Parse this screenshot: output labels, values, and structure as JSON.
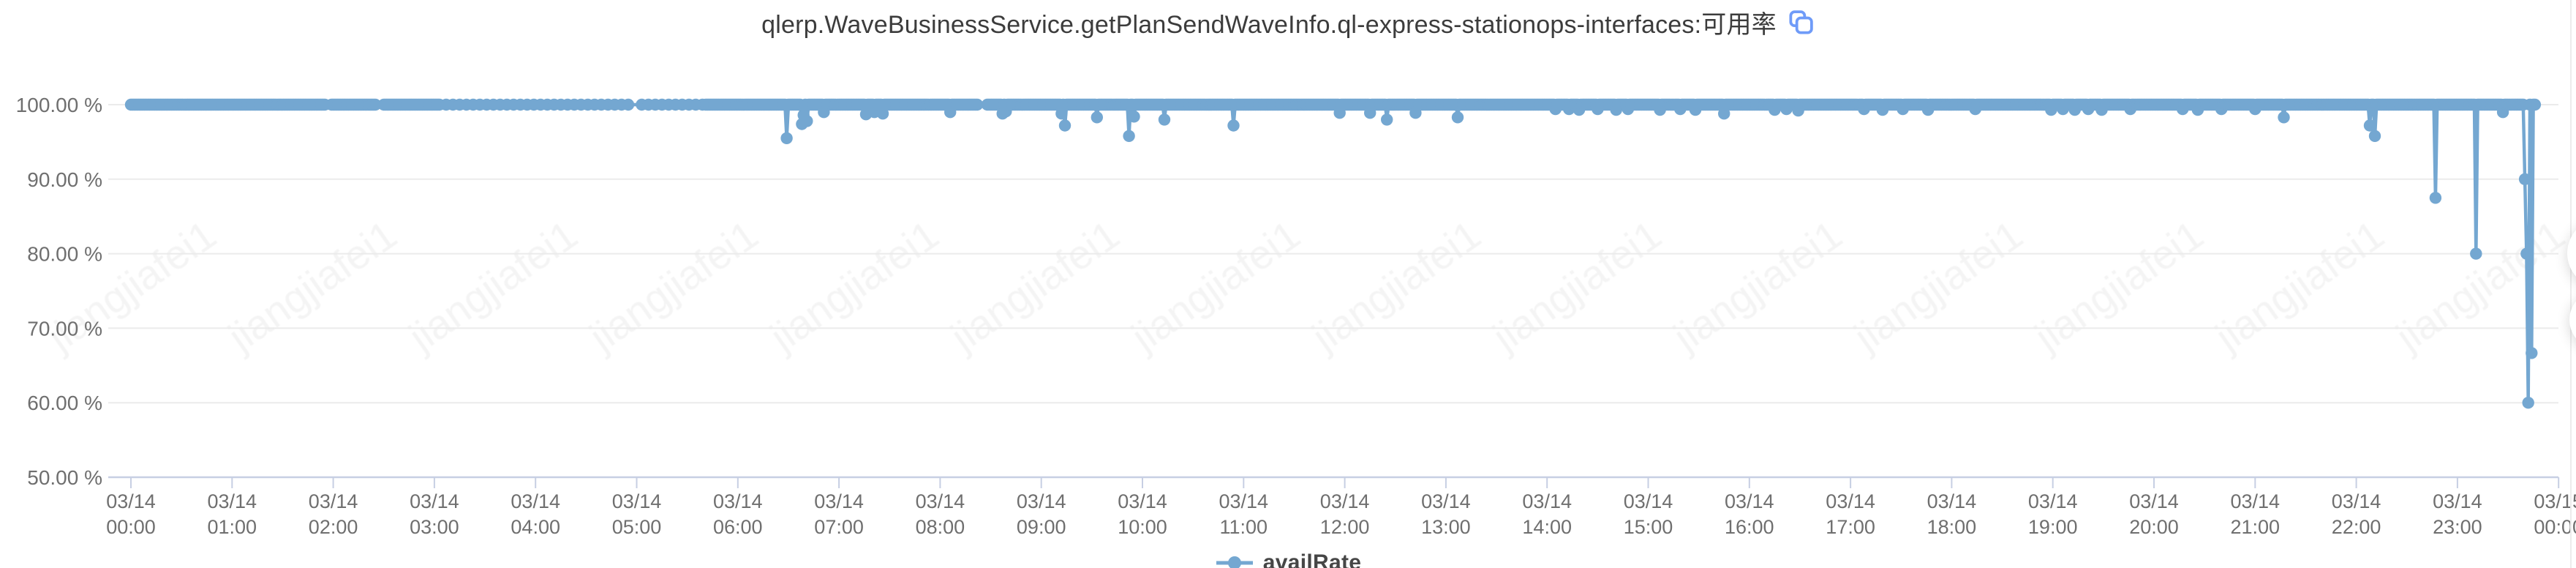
{
  "title": {
    "text": "qlerp.WaveBusinessService.getPlanSendWaveInfo.ql-express-stationops-interfaces:可用率"
  },
  "watermark": {
    "text": "jiangjiafei1"
  },
  "legend": {
    "items": [
      {
        "label": "availRate",
        "color": "#74a7d1"
      }
    ]
  },
  "colors": {
    "series": "#74a7d1",
    "grid_line": "#ebebeb",
    "axis_line": "#c7cfe3",
    "tick_label": "#6f6f6f",
    "title_text": "#3c3c3c",
    "copy_icon": "#6f9bf8",
    "legend_text": "#464646"
  },
  "chart_data": {
    "type": "line",
    "series_name": "availRate",
    "unit": "%",
    "ylim": [
      50,
      100
    ],
    "grid": true,
    "legend_position": "bottom-center",
    "y_tick_labels": [
      "100.00 %",
      "90.00 %",
      "80.00 %",
      "70.00 %",
      "60.00 %",
      "50.00 %"
    ],
    "x_tick_labels": [
      {
        "date": "03/14",
        "time": "00:00"
      },
      {
        "date": "03/14",
        "time": "01:00"
      },
      {
        "date": "03/14",
        "time": "02:00"
      },
      {
        "date": "03/14",
        "time": "03:00"
      },
      {
        "date": "03/14",
        "time": "04:00"
      },
      {
        "date": "03/14",
        "time": "05:00"
      },
      {
        "date": "03/14",
        "time": "06:00"
      },
      {
        "date": "03/14",
        "time": "07:00"
      },
      {
        "date": "03/14",
        "time": "08:00"
      },
      {
        "date": "03/14",
        "time": "09:00"
      },
      {
        "date": "03/14",
        "time": "10:00"
      },
      {
        "date": "03/14",
        "time": "11:00"
      },
      {
        "date": "03/14",
        "time": "12:00"
      },
      {
        "date": "03/14",
        "time": "13:00"
      },
      {
        "date": "03/14",
        "time": "14:00"
      },
      {
        "date": "03/14",
        "time": "15:00"
      },
      {
        "date": "03/14",
        "time": "16:00"
      },
      {
        "date": "03/14",
        "time": "17:00"
      },
      {
        "date": "03/14",
        "time": "18:00"
      },
      {
        "date": "03/14",
        "time": "19:00"
      },
      {
        "date": "03/14",
        "time": "20:00"
      },
      {
        "date": "03/14",
        "time": "21:00"
      },
      {
        "date": "03/14",
        "time": "22:00"
      },
      {
        "date": "03/14",
        "time": "23:00"
      },
      {
        "date": "03/15",
        "time": "00:00"
      }
    ],
    "sampling_interval_minutes": 1,
    "baseline_value": 100,
    "start_time": "03/14 00:00",
    "end_time": "03/14 23:46",
    "end_minute": 1426,
    "sparse_segment": {
      "from_minute": 183,
      "to_minute": 341,
      "step": 4
    },
    "gaps_minutes": [
      [
        116,
        118
      ],
      [
        146,
        149
      ],
      [
        298,
        302
      ],
      [
        503,
        507
      ]
    ],
    "dips": [
      {
        "t": "06:29",
        "v": 95.5
      },
      {
        "t": "06:38",
        "v": 97.4
      },
      {
        "t": "06:39",
        "v": 98.6
      },
      {
        "t": "06:41",
        "v": 97.8
      },
      {
        "t": "06:51",
        "v": 99.0
      },
      {
        "t": "07:16",
        "v": 98.7
      },
      {
        "t": "07:21",
        "v": 99.0
      },
      {
        "t": "07:26",
        "v": 98.8
      },
      {
        "t": "08:06",
        "v": 99.0
      },
      {
        "t": "08:37",
        "v": 98.8
      },
      {
        "t": "08:39",
        "v": 99.1
      },
      {
        "t": "09:12",
        "v": 98.8
      },
      {
        "t": "09:14",
        "v": 97.2
      },
      {
        "t": "09:33",
        "v": 98.3
      },
      {
        "t": "09:52",
        "v": 95.8
      },
      {
        "t": "09:55",
        "v": 98.4
      },
      {
        "t": "10:13",
        "v": 98.0
      },
      {
        "t": "10:54",
        "v": 97.2
      },
      {
        "t": "11:57",
        "v": 98.9
      },
      {
        "t": "12:15",
        "v": 98.9
      },
      {
        "t": "12:25",
        "v": 98.0
      },
      {
        "t": "12:42",
        "v": 98.9
      },
      {
        "t": "13:07",
        "v": 98.3
      },
      {
        "t": "14:05",
        "v": 99.4
      },
      {
        "t": "14:13",
        "v": 99.4
      },
      {
        "t": "14:19",
        "v": 99.3
      },
      {
        "t": "14:30",
        "v": 99.4
      },
      {
        "t": "14:41",
        "v": 99.3
      },
      {
        "t": "14:48",
        "v": 99.4
      },
      {
        "t": "15:07",
        "v": 99.3
      },
      {
        "t": "15:19",
        "v": 99.4
      },
      {
        "t": "15:28",
        "v": 99.3
      },
      {
        "t": "15:45",
        "v": 98.8
      },
      {
        "t": "16:15",
        "v": 99.3
      },
      {
        "t": "16:22",
        "v": 99.4
      },
      {
        "t": "16:29",
        "v": 99.2
      },
      {
        "t": "17:08",
        "v": 99.4
      },
      {
        "t": "17:19",
        "v": 99.3
      },
      {
        "t": "17:31",
        "v": 99.4
      },
      {
        "t": "17:46",
        "v": 99.3
      },
      {
        "t": "18:14",
        "v": 99.4
      },
      {
        "t": "18:59",
        "v": 99.3
      },
      {
        "t": "19:06",
        "v": 99.4
      },
      {
        "t": "19:13",
        "v": 99.3
      },
      {
        "t": "19:21",
        "v": 99.4
      },
      {
        "t": "19:29",
        "v": 99.3
      },
      {
        "t": "19:46",
        "v": 99.4
      },
      {
        "t": "20:17",
        "v": 99.4
      },
      {
        "t": "20:26",
        "v": 99.3
      },
      {
        "t": "20:40",
        "v": 99.4
      },
      {
        "t": "21:00",
        "v": 99.4
      },
      {
        "t": "21:17",
        "v": 98.3
      },
      {
        "t": "22:08",
        "v": 97.2
      },
      {
        "t": "22:11",
        "v": 95.8
      },
      {
        "t": "22:47",
        "v": 87.5
      },
      {
        "t": "23:11",
        "v": 80.0
      },
      {
        "t": "23:27",
        "v": 99.0
      },
      {
        "t": "23:40",
        "v": 90.0
      },
      {
        "t": "23:41",
        "v": 80.0
      },
      {
        "t": "23:42",
        "v": 60.0
      },
      {
        "t": "23:44",
        "v": 66.67
      }
    ]
  }
}
